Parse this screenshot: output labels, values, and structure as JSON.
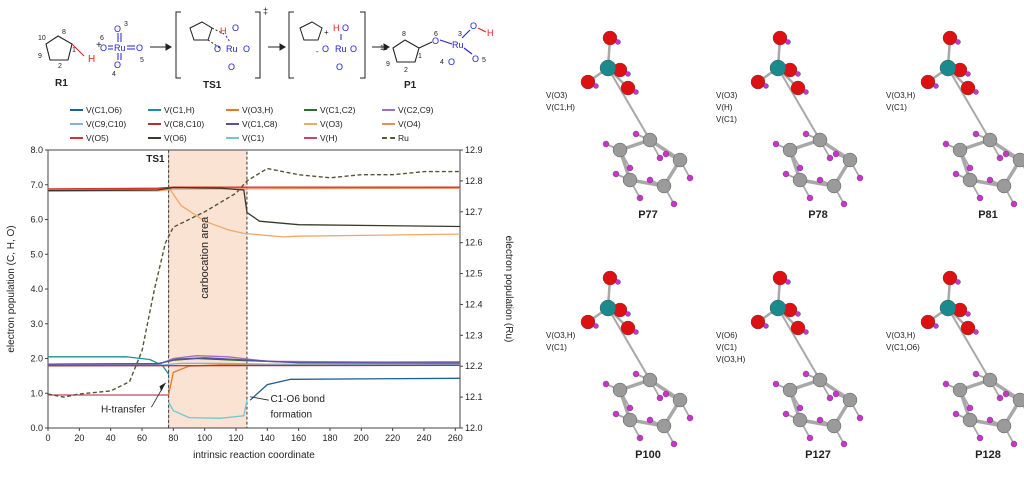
{
  "scheme": {
    "labels": [
      "R1",
      "TS1",
      "P1"
    ],
    "ru": "Ru",
    "h": "H",
    "o": "O",
    "ts_mark": "‡",
    "plus": "+",
    "minus": "-",
    "atom_numbers": [
      "10",
      "8",
      "1",
      "9",
      "2",
      "3",
      "6",
      "5",
      "4"
    ],
    "colors": {
      "ink": "#222222",
      "ru": "#2222cc",
      "h": "#dd2222"
    }
  },
  "chart_data": {
    "type": "line",
    "xlabel": "intrinsic reaction coordinate",
    "ylabel_left": "electron population (C, H, O)",
    "ylabel_right": "electron population (Ru)",
    "xlim": [
      0,
      263
    ],
    "ylim_left": [
      0.0,
      8.0
    ],
    "ylim_right": [
      12.0,
      12.9
    ],
    "x_ticks": [
      "0",
      "20",
      "40",
      "60",
      "80",
      "100",
      "120",
      "140",
      "160",
      "180",
      "200",
      "220",
      "240",
      "260"
    ],
    "x_tick_values": [
      0,
      20,
      40,
      60,
      80,
      100,
      120,
      140,
      160,
      180,
      200,
      220,
      240,
      260
    ],
    "y_left_ticks": [
      "0.0",
      "1.0",
      "2.0",
      "3.0",
      "4.0",
      "5.0",
      "6.0",
      "7.0",
      "8.0"
    ],
    "y_left_values": [
      0,
      1,
      2,
      3,
      4,
      5,
      6,
      7,
      8
    ],
    "y_right_ticks": [
      "12.0",
      "12.1",
      "12.2",
      "12.3",
      "12.4",
      "12.5",
      "12.6",
      "12.7",
      "12.8",
      "12.9"
    ],
    "y_right_values": [
      12.0,
      12.1,
      12.2,
      12.3,
      12.4,
      12.5,
      12.6,
      12.7,
      12.8,
      12.9
    ],
    "ts_line_x": 77,
    "carbocation_range": [
      77,
      127
    ],
    "annotations": {
      "ts": "TS1",
      "area": "carbocation area",
      "h_transfer": "H-transfer",
      "bond_formation_1": "C1-O6 bond",
      "bond_formation_2": "formation"
    },
    "series": [
      {
        "name": "V(C1,O6)",
        "color": "#1f5f9a",
        "axis": "left",
        "points": [
          [
            129,
            0.8
          ],
          [
            140,
            1.25
          ],
          [
            155,
            1.4
          ],
          [
            263,
            1.43
          ]
        ]
      },
      {
        "name": "V(C1,H)",
        "color": "#1a8fa0",
        "axis": "left",
        "points": [
          [
            0,
            2.05
          ],
          [
            50,
            2.05
          ],
          [
            65,
            1.97
          ],
          [
            73,
            1.8
          ],
          [
            77,
            1.55
          ]
        ]
      },
      {
        "name": "V(O3,H)",
        "color": "#e07b2a",
        "axis": "left",
        "points": [
          [
            77,
            0.95
          ],
          [
            80,
            1.6
          ],
          [
            90,
            1.78
          ],
          [
            110,
            1.82
          ],
          [
            263,
            1.84
          ]
        ]
      },
      {
        "name": "V(C1,C2)",
        "color": "#2e6b2e",
        "axis": "left",
        "points": [
          [
            0,
            1.84
          ],
          [
            70,
            1.85
          ],
          [
            80,
            1.95
          ],
          [
            95,
            2.0
          ],
          [
            120,
            1.95
          ],
          [
            150,
            1.9
          ],
          [
            263,
            1.9
          ]
        ]
      },
      {
        "name": "V(C2,C9)",
        "color": "#a070c0",
        "axis": "left",
        "points": [
          [
            0,
            1.82
          ],
          [
            70,
            1.82
          ],
          [
            80,
            2.0
          ],
          [
            95,
            2.08
          ],
          [
            115,
            2.05
          ],
          [
            140,
            1.92
          ],
          [
            263,
            1.88
          ]
        ]
      },
      {
        "name": "V(C9,C10)",
        "color": "#7fb4dc",
        "axis": "left",
        "points": [
          [
            0,
            1.8
          ],
          [
            70,
            1.8
          ],
          [
            85,
            1.86
          ],
          [
            110,
            1.86
          ],
          [
            140,
            1.84
          ],
          [
            263,
            1.83
          ]
        ]
      },
      {
        "name": "V(C8,C10)",
        "color": "#b03030",
        "axis": "left",
        "points": [
          [
            0,
            1.79
          ],
          [
            263,
            1.8
          ]
        ]
      },
      {
        "name": "V(C1,C8)",
        "color": "#5a50a0",
        "axis": "left",
        "points": [
          [
            0,
            1.84
          ],
          [
            70,
            1.85
          ],
          [
            82,
            1.98
          ],
          [
            100,
            2.02
          ],
          [
            125,
            1.96
          ],
          [
            160,
            1.88
          ],
          [
            263,
            1.87
          ]
        ]
      },
      {
        "name": "V(O3)",
        "color": "#f0a868",
        "axis": "left",
        "points": [
          [
            0,
            6.82
          ],
          [
            70,
            6.82
          ],
          [
            78,
            6.86
          ],
          [
            85,
            6.4
          ],
          [
            100,
            5.95
          ],
          [
            115,
            5.7
          ],
          [
            125,
            5.6
          ],
          [
            150,
            5.5
          ],
          [
            160,
            5.52
          ],
          [
            263,
            5.58
          ]
        ]
      },
      {
        "name": "V(O4)",
        "color": "#e8905a",
        "axis": "left",
        "points": [
          [
            0,
            6.87
          ],
          [
            263,
            6.9
          ]
        ]
      },
      {
        "name": "V(O5)",
        "color": "#d83030",
        "axis": "left",
        "points": [
          [
            0,
            6.88
          ],
          [
            70,
            6.9
          ],
          [
            80,
            6.93
          ],
          [
            263,
            6.93
          ]
        ]
      },
      {
        "name": "V(O6)",
        "color": "#3a3a2a",
        "axis": "left",
        "points": [
          [
            0,
            6.83
          ],
          [
            70,
            6.85
          ],
          [
            80,
            6.92
          ],
          [
            110,
            6.9
          ],
          [
            125,
            6.85
          ],
          [
            127,
            6.2
          ],
          [
            135,
            5.95
          ],
          [
            160,
            5.85
          ],
          [
            263,
            5.8
          ]
        ]
      },
      {
        "name": "V(C1)",
        "color": "#70c8d0",
        "axis": "left",
        "points": [
          [
            77,
            0.75
          ],
          [
            80,
            0.5
          ],
          [
            90,
            0.3
          ],
          [
            110,
            0.28
          ],
          [
            125,
            0.35
          ],
          [
            127,
            0.8
          ]
        ]
      },
      {
        "name": "V(H)",
        "color": "#c04a6a",
        "axis": "left",
        "points": [
          [
            0,
            0.95
          ],
          [
            77,
            0.95
          ]
        ]
      },
      {
        "name": "Ru",
        "color": "#555533",
        "axis": "right",
        "dashed": true,
        "points": [
          [
            0,
            12.11
          ],
          [
            10,
            12.1
          ],
          [
            20,
            12.11
          ],
          [
            40,
            12.12
          ],
          [
            52,
            12.15
          ],
          [
            60,
            12.25
          ],
          [
            68,
            12.45
          ],
          [
            75,
            12.6
          ],
          [
            80,
            12.65
          ],
          [
            100,
            12.7
          ],
          [
            120,
            12.76
          ],
          [
            127,
            12.8
          ],
          [
            140,
            12.84
          ],
          [
            160,
            12.82
          ],
          [
            180,
            12.81
          ],
          [
            200,
            12.82
          ],
          [
            220,
            12.82
          ],
          [
            240,
            12.83
          ],
          [
            263,
            12.83
          ]
        ]
      }
    ]
  },
  "molecules": {
    "items": [
      {
        "label": "P77",
        "ann": [
          "V(O3)",
          "V(C1,H)"
        ]
      },
      {
        "label": "P78",
        "ann": [
          "V(O3)",
          "V(H)",
          "V(C1)"
        ]
      },
      {
        "label": "P81",
        "ann": [
          "V(O3,H)",
          "V(C1)"
        ]
      },
      {
        "label": "P100",
        "ann": [
          "V(O3,H)",
          "V(C1)"
        ]
      },
      {
        "label": "P127",
        "ann": [
          "V(O6)",
          "V(C1)",
          "V(O3,H)"
        ]
      },
      {
        "label": "P128",
        "ann": [
          "V(O3,H)",
          "V(C1,O6)"
        ]
      }
    ],
    "colors": {
      "ru": "#1b8a8c",
      "o": "#dd1111",
      "c": "#9a9a9a",
      "h": "#cc33cc"
    }
  }
}
